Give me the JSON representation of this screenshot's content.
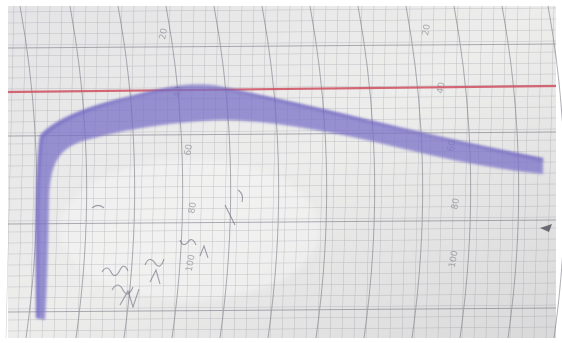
{
  "scene": {
    "subject": "chart-recorder-paper",
    "colors": {
      "paper": "#ebebea",
      "paper_shade": "#d6d6d6",
      "grid_line": "#8a8a95",
      "reference_line": "#cf4f5f",
      "trace": "#7a72c8",
      "handwriting": "#58586a",
      "border": "#ffffff"
    }
  },
  "paper": {
    "printed_numbers": [
      "20",
      "40",
      "60",
      "80",
      "100"
    ]
  }
}
